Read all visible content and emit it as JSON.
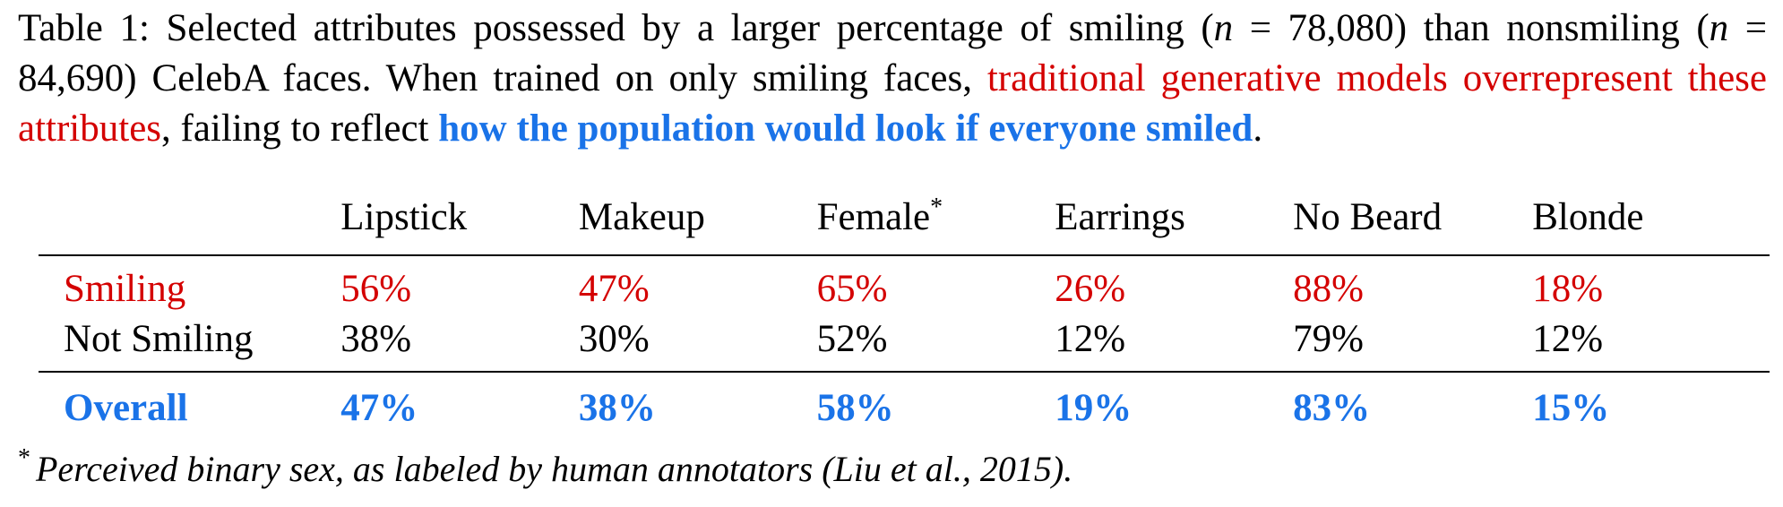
{
  "caption": {
    "part1": "Table 1: Selected attributes possessed by a larger percentage of smiling (",
    "n1_var": "n",
    "n1_val": " = 78,080) than nonsmiling (",
    "n2_var": "n",
    "n2_val": " = 84,690) CelebA faces.  When trained on only smiling faces, ",
    "red_text": "traditional generative models overrepresent these attributes",
    "part2": ", failing to reflect ",
    "blue_text": "how the population would look if everyone smiled",
    "end": "."
  },
  "table": {
    "columns": [
      "Lipstick",
      "Makeup",
      "Female",
      "Earrings",
      "No Beard",
      "Blonde"
    ],
    "female_mark": "*",
    "rows": [
      {
        "label": "Smiling",
        "values": [
          "56%",
          "47%",
          "65%",
          "26%",
          "88%",
          "18%"
        ],
        "color": "#d40000"
      },
      {
        "label": "Not Smiling",
        "values": [
          "38%",
          "30%",
          "52%",
          "12%",
          "79%",
          "12%"
        ],
        "color": "#000000"
      }
    ],
    "overall": {
      "label": "Overall",
      "values": [
        "47%",
        "38%",
        "58%",
        "19%",
        "83%",
        "15%"
      ],
      "color": "#1a73e8"
    }
  },
  "footnote": {
    "mark": "*",
    "text": "Perceived binary sex, as labeled by human annotators (Liu et al., 2015)."
  }
}
